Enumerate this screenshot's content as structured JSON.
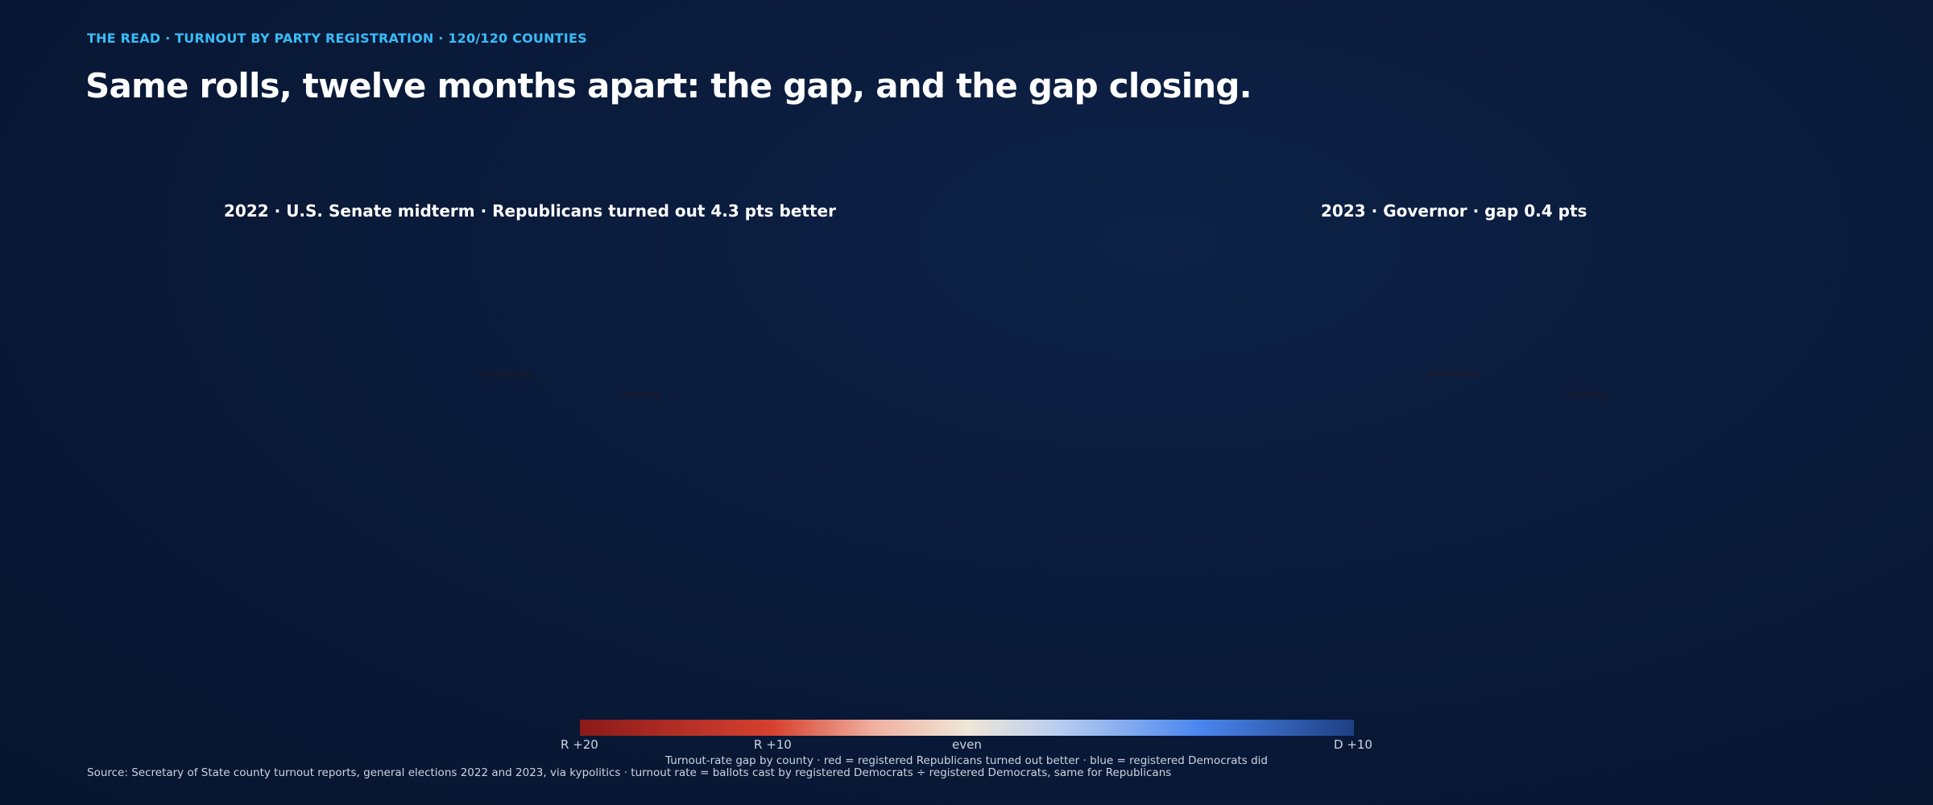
{
  "kicker": "THE READ · TURNOUT BY PARTY REGISTRATION · 120/120 COUNTIES",
  "headline": "Same rolls, twelve months apart: the gap, and the gap closing.",
  "maps": {
    "left": {
      "title": "2022 · U.S. Senate midterm · Republicans turned out 4.3 pts better",
      "label_jefferson": "JEFFERSON",
      "label_fayette": "FAYETTE"
    },
    "right": {
      "title": "2023 · Governor · gap 0.4 pts",
      "label_jefferson": "JEFFERSON",
      "label_fayette": "FAYETTE"
    }
  },
  "legend": {
    "ticks": [
      "R +20",
      "R +10",
      "even",
      "D +10"
    ],
    "caption": "Turnout-rate gap by county · red = registered Republicans turned out better · blue = registered Democrats did"
  },
  "source": "Source: Secretary of State county turnout reports, general elections 2022 and 2023, via kypolitics · turnout rate = ballots cast by registered Democrats ÷ registered Democrats, same for Republicans",
  "colors": {
    "r_strong": "#8b1a1a",
    "r_mid": "#d7412f",
    "r_light": "#f0b0a0",
    "even": "#efe6d6",
    "d_light": "#b8cdf0",
    "d_mid": "#4a86f0",
    "d_strong": "#1e3f82",
    "kicker": "#38bdf8"
  }
}
